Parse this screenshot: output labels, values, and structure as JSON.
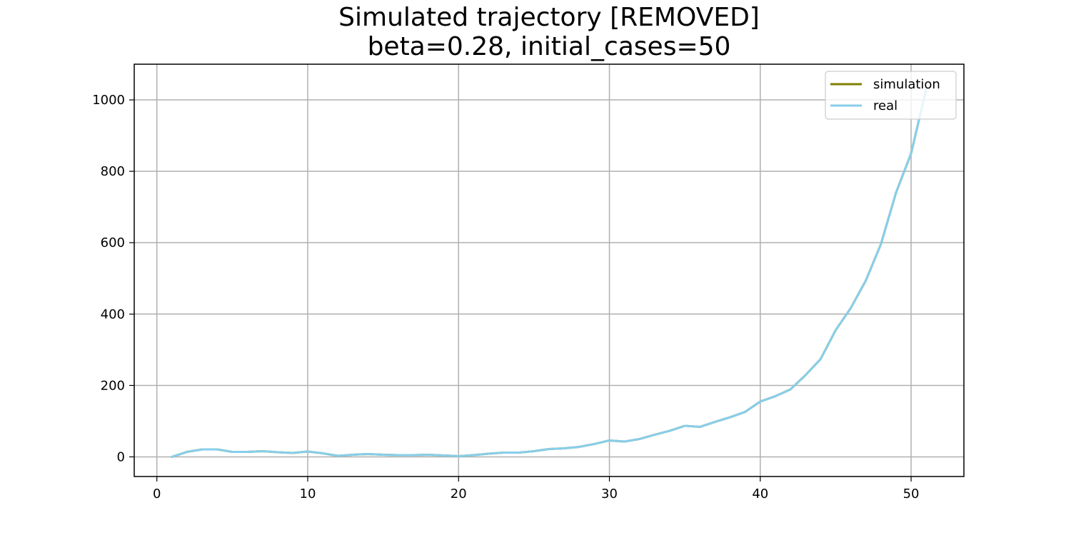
{
  "chart_data": {
    "type": "line",
    "title": "Simulated trajectory [REMOVED]",
    "subtitle": "beta=0.28, initial_cases=50",
    "xlabel": "",
    "ylabel": "",
    "xlim": [
      -1.5,
      53.5
    ],
    "ylim": [
      -55,
      1100
    ],
    "xticks": [
      0,
      10,
      20,
      30,
      40,
      50
    ],
    "yticks": [
      0,
      200,
      400,
      600,
      800,
      1000
    ],
    "grid": true,
    "legend_position": "top-right",
    "x": [
      1,
      2,
      3,
      4,
      5,
      6,
      7,
      8,
      9,
      10,
      11,
      12,
      13,
      14,
      15,
      16,
      17,
      18,
      19,
      20,
      21,
      22,
      23,
      24,
      25,
      26,
      27,
      28,
      29,
      30,
      31,
      32,
      33,
      34,
      35,
      36,
      37,
      38,
      39,
      40,
      41,
      42,
      43,
      44,
      45,
      46,
      47,
      48,
      49,
      50,
      51
    ],
    "series": [
      {
        "name": "simulation",
        "color": "#808000",
        "values": [
          0,
          14,
          21,
          21,
          14,
          14,
          16,
          13,
          11,
          15,
          10,
          3,
          6,
          8,
          6,
          5,
          5,
          6,
          4,
          2,
          5,
          9,
          12,
          12,
          16,
          22,
          24,
          28,
          36,
          46,
          43,
          50,
          62,
          73,
          87,
          84,
          98,
          111,
          126,
          155,
          170,
          189,
          229,
          274,
          355,
          417,
          494,
          596,
          740,
          850,
          1030
        ]
      },
      {
        "name": "real",
        "color": "#87ceeb",
        "values": [
          0,
          14,
          21,
          21,
          14,
          14,
          16,
          13,
          11,
          15,
          10,
          3,
          6,
          8,
          6,
          5,
          5,
          6,
          4,
          2,
          5,
          9,
          12,
          12,
          16,
          22,
          24,
          28,
          36,
          46,
          43,
          50,
          62,
          73,
          87,
          84,
          98,
          111,
          126,
          155,
          170,
          189,
          229,
          274,
          355,
          417,
          494,
          596,
          740,
          850,
          1030
        ]
      }
    ]
  }
}
